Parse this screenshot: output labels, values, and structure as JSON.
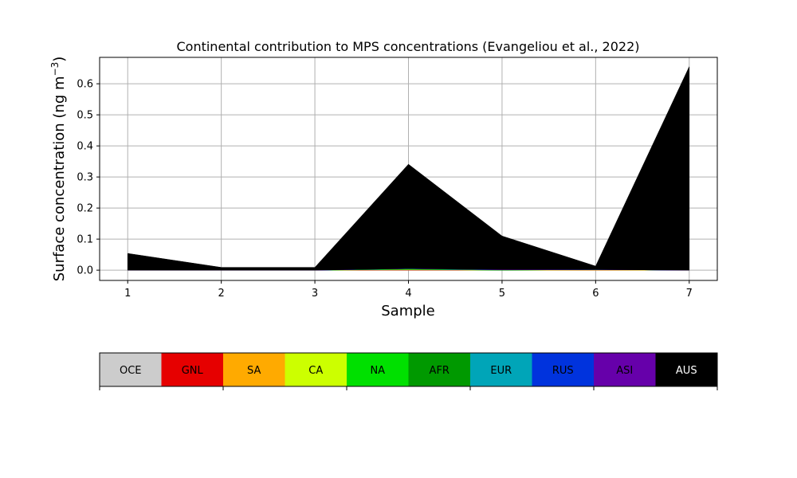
{
  "chart_data": {
    "type": "area",
    "title": "Continental contribution to MPS concentrations (Evangeliou et al., 2022)",
    "xlabel": "Sample",
    "ylabel_main": "Surface concentration (ng m",
    "ylabel_sup": "−3",
    "ylabel_close": ")",
    "x": [
      1,
      2,
      3,
      4,
      5,
      6,
      7
    ],
    "xlim": [
      0.7,
      7.3
    ],
    "ylim": [
      -0.033,
      0.685
    ],
    "xticks": [
      1,
      2,
      3,
      4,
      5,
      6,
      7
    ],
    "yticks": [
      0.0,
      0.1,
      0.2,
      0.3,
      0.4,
      0.5,
      0.6
    ],
    "grid": true,
    "legend_position": "bottom",
    "series": [
      {
        "name": "OCE",
        "color": "#cccccc",
        "values": [
          0.0,
          0.0,
          0.0,
          0.0,
          0.0,
          0.0,
          0.0
        ]
      },
      {
        "name": "GNL",
        "color": "#e60000",
        "values": [
          0.0,
          0.0,
          0.0,
          0.001,
          0.0,
          0.0,
          0.0
        ]
      },
      {
        "name": "SA",
        "color": "#ffaa00",
        "values": [
          0.0,
          0.0,
          0.0,
          0.001,
          0.0,
          0.001,
          0.0
        ]
      },
      {
        "name": "CA",
        "color": "#ccff00",
        "values": [
          0.0,
          0.0,
          0.0,
          0.0,
          0.0,
          0.001,
          0.0
        ]
      },
      {
        "name": "NA",
        "color": "#00e000",
        "values": [
          0.0,
          0.0,
          0.0,
          0.001,
          0.0,
          0.0,
          0.0
        ]
      },
      {
        "name": "AFR",
        "color": "#009900",
        "values": [
          0.0,
          0.0,
          0.0,
          0.001,
          0.001,
          0.0,
          0.0
        ]
      },
      {
        "name": "EUR",
        "color": "#00a5b8",
        "values": [
          0.0,
          0.0,
          0.0,
          0.001,
          0.0,
          0.0,
          0.0
        ]
      },
      {
        "name": "RUS",
        "color": "#0033dd",
        "values": [
          0.0,
          0.0,
          0.0,
          0.0,
          0.0,
          0.0,
          0.0
        ]
      },
      {
        "name": "ASI",
        "color": "#6600aa",
        "values": [
          0.0,
          0.0,
          0.0,
          0.0,
          0.001,
          0.0,
          0.0
        ]
      },
      {
        "name": "AUS",
        "color": "#000000",
        "values": [
          0.054,
          0.009,
          0.009,
          0.336,
          0.108,
          0.011,
          0.655
        ]
      }
    ],
    "legend_text_colors": {
      "AUS": "#ffffff",
      "default": "#000000"
    }
  }
}
